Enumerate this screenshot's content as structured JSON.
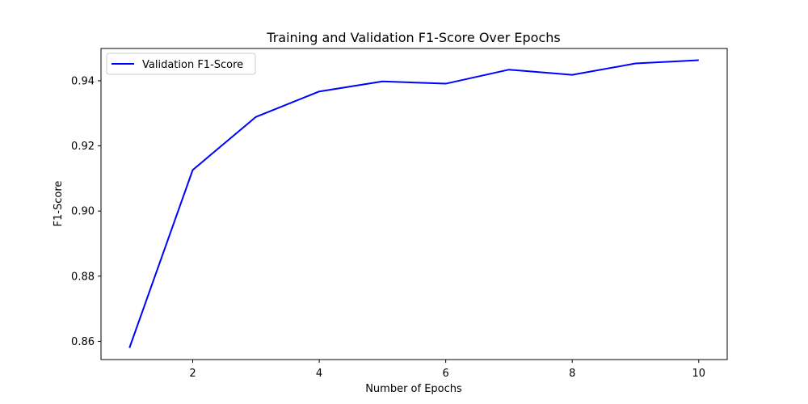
{
  "chart_data": {
    "type": "line",
    "title": "Training and Validation F1-Score Over Epochs",
    "xlabel": "Number of Epochs",
    "ylabel": "F1-Score",
    "xlim": [
      0.55,
      10.45
    ],
    "ylim": [
      0.8544,
      0.9499
    ],
    "xticks": [
      2,
      4,
      6,
      8,
      10
    ],
    "yticks": [
      0.86,
      0.88,
      0.9,
      0.92,
      0.94
    ],
    "ytick_labels": [
      "0.86",
      "0.88",
      "0.90",
      "0.92",
      "0.94"
    ],
    "x": [
      1,
      2,
      3,
      4,
      5,
      6,
      7,
      8,
      9,
      10
    ],
    "series": [
      {
        "name": "Validation F1-Score",
        "color": "#0000ff",
        "values": [
          0.858,
          0.9126,
          0.9289,
          0.9367,
          0.9398,
          0.9391,
          0.9434,
          0.9418,
          0.9453,
          0.9463
        ]
      }
    ],
    "legend": "top-left",
    "grid": false
  }
}
